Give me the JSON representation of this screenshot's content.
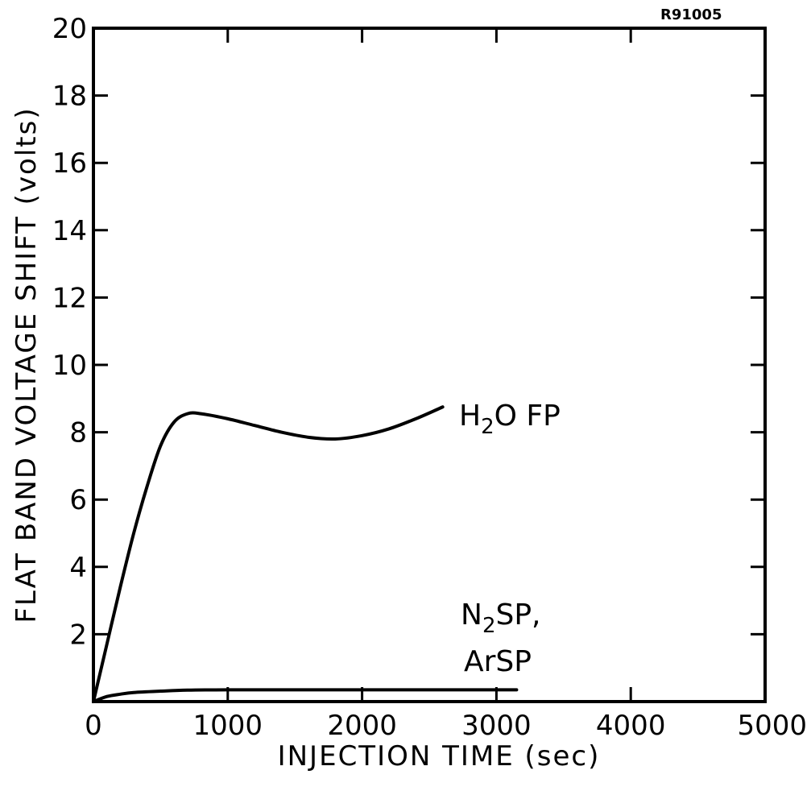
{
  "figure_id": "R91005",
  "chart_data": {
    "type": "line",
    "xlabel": "INJECTION TIME (sec)",
    "ylabel": "FLAT BAND VOLTAGE SHIFT (volts)",
    "xlim": [
      0,
      5000
    ],
    "ylim": [
      0,
      20
    ],
    "x_ticks": [
      0,
      1000,
      2000,
      3000,
      4000,
      5000
    ],
    "y_ticks": [
      2,
      4,
      6,
      8,
      10,
      12,
      14,
      16,
      18,
      20
    ],
    "grid": false,
    "series": [
      {
        "name": "H2O FP",
        "label_parts": [
          {
            "text": "H"
          },
          {
            "text": "2",
            "sub": true
          },
          {
            "text": "O FP"
          }
        ],
        "x": [
          0,
          100,
          200,
          300,
          400,
          500,
          600,
          700,
          800,
          1000,
          1200,
          1400,
          1600,
          1800,
          2000,
          2200,
          2400,
          2600
        ],
        "y": [
          0,
          1.7,
          3.4,
          5.0,
          6.4,
          7.6,
          8.3,
          8.55,
          8.55,
          8.4,
          8.2,
          8.0,
          7.85,
          7.8,
          7.9,
          8.1,
          8.4,
          8.75
        ]
      },
      {
        "name": "N2SP, ArSP",
        "label_parts_line1": [
          {
            "text": "N"
          },
          {
            "text": "2",
            "sub": true
          },
          {
            "text": "SP,"
          }
        ],
        "label_line2": "ArSP",
        "x": [
          0,
          100,
          200,
          300,
          500,
          700,
          1000,
          1500,
          2000,
          2500,
          3150
        ],
        "y": [
          0,
          0.15,
          0.22,
          0.27,
          0.31,
          0.34,
          0.35,
          0.35,
          0.35,
          0.35,
          0.35
        ]
      }
    ]
  }
}
